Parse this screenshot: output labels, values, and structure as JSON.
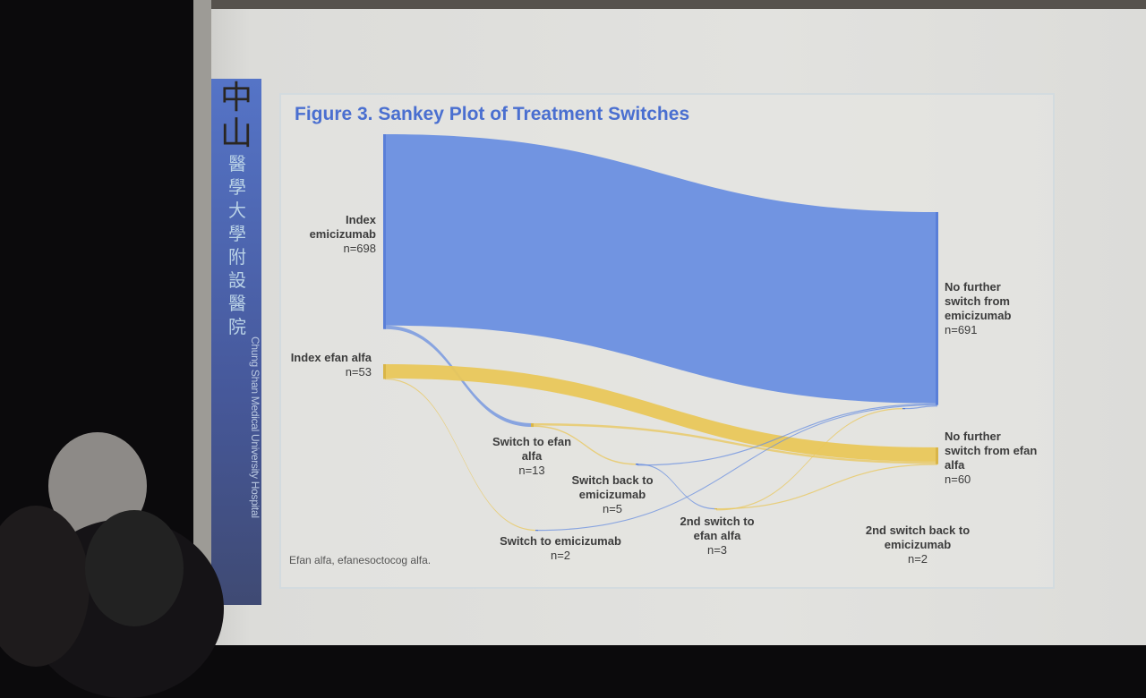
{
  "logo": {
    "chinese_top": "中山",
    "chinese_text": [
      "醫",
      "學",
      "大",
      "學",
      "附",
      "設",
      "醫",
      "院"
    ],
    "english": "Chung Shan Medical University Hospital"
  },
  "footnote": "Efan alfa, efanesoctocog alfa.",
  "chart_data": {
    "type": "sankey",
    "title": "Figure 3. Sankey Plot of Treatment Switches",
    "colors": {
      "emicizumab": "#6a8fe0",
      "efan_alfa": "#e9c75a"
    },
    "nodes": [
      {
        "id": "idx_emi",
        "label": "Index emicizumab",
        "n": "n=698",
        "value": 698
      },
      {
        "id": "idx_efan",
        "label": "Index efan alfa",
        "n": "n=53",
        "value": 53
      },
      {
        "id": "sw_efan",
        "label": "Switch to efan alfa",
        "n": "n=13",
        "value": 13
      },
      {
        "id": "sw_emi",
        "label": "Switch to emicizumab",
        "n": "n=2",
        "value": 2
      },
      {
        "id": "swb_emi",
        "label": "Switch back to emicizumab",
        "n": "n=5",
        "value": 5
      },
      {
        "id": "sw2_efan",
        "label": "2nd switch to efan alfa",
        "n": "n=3",
        "value": 3
      },
      {
        "id": "sw2b_emi",
        "label": "2nd switch back to emicizumab",
        "n": "n=2",
        "value": 2
      },
      {
        "id": "nf_emi",
        "label": "No further switch from emicizumab",
        "n": "n=691",
        "value": 691
      },
      {
        "id": "nf_efan",
        "label": "No further switch from efan alfa",
        "n": "n=60",
        "value": 60
      }
    ],
    "links": [
      {
        "source": "idx_emi",
        "target": "nf_emi",
        "value": 685,
        "color": "emicizumab"
      },
      {
        "source": "idx_emi",
        "target": "sw_efan",
        "value": 13,
        "color": "emicizumab"
      },
      {
        "source": "idx_efan",
        "target": "nf_efan",
        "value": 51,
        "color": "efan_alfa"
      },
      {
        "source": "idx_efan",
        "target": "sw_emi",
        "value": 2,
        "color": "efan_alfa"
      },
      {
        "source": "sw_efan",
        "target": "nf_efan",
        "value": 8,
        "color": "efan_alfa"
      },
      {
        "source": "sw_efan",
        "target": "swb_emi",
        "value": 5,
        "color": "efan_alfa"
      },
      {
        "source": "swb_emi",
        "target": "sw2_efan",
        "value": 3,
        "color": "emicizumab"
      },
      {
        "source": "swb_emi",
        "target": "nf_emi",
        "value": 2,
        "color": "emicizumab"
      },
      {
        "source": "sw2_efan",
        "target": "nf_efan",
        "value": 1,
        "color": "efan_alfa"
      },
      {
        "source": "sw2_efan",
        "target": "sw2b_emi",
        "value": 2,
        "color": "efan_alfa"
      },
      {
        "source": "sw_emi",
        "target": "nf_emi",
        "value": 2,
        "color": "emicizumab"
      },
      {
        "source": "sw2b_emi",
        "target": "nf_emi",
        "value": 2,
        "color": "emicizumab"
      }
    ]
  }
}
